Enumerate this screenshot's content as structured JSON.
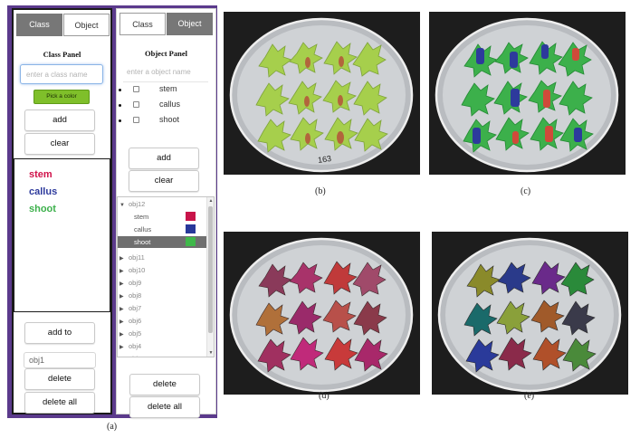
{
  "class_panel": {
    "tabs": {
      "class": "Class",
      "object": "Object"
    },
    "title": "Class Panel",
    "input_placeholder": "enter a class name",
    "pick_color": "Pick a color",
    "add": "add",
    "clear": "clear",
    "classes": [
      {
        "label": "stem",
        "color": "#d0124a"
      },
      {
        "label": "callus",
        "color": "#2d3a9c"
      },
      {
        "label": "shoot",
        "color": "#3cb04b"
      }
    ],
    "add_to": "add to",
    "target_object": "obj1",
    "delete": "delete",
    "delete_all": "delete all"
  },
  "object_panel": {
    "tabs": {
      "class": "Class",
      "object": "Object"
    },
    "title": "Object Panel",
    "input_placeholder": "enter a object name",
    "checklist": [
      "stem",
      "callus",
      "shoot"
    ],
    "add": "add",
    "clear": "clear",
    "tree": {
      "expanded": {
        "name": "obj12",
        "children": [
          {
            "label": "stem",
            "color": "#c8144a"
          },
          {
            "label": "callus",
            "color": "#28389a"
          },
          {
            "label": "shoot",
            "color": "#3fb84a",
            "selected": true
          }
        ]
      },
      "collapsed": [
        "obj11",
        "obj10",
        "obj9",
        "obj8",
        "obj7",
        "obj6",
        "obj5",
        "obj4",
        "obj3"
      ]
    },
    "delete": "delete",
    "delete_all": "delete all"
  },
  "captions": {
    "a": "(a)",
    "b": "(b)",
    "c": "(c)",
    "d": "(d)",
    "e": "(e)"
  },
  "dish_label": "163",
  "colors": {
    "tool_frame": "#5b3a8c",
    "plant_green": "#a6cf4c",
    "overlay_shoot": "#3cb04b",
    "overlay_callus": "#2d3a9c",
    "overlay_stem": "#d04a3a"
  }
}
